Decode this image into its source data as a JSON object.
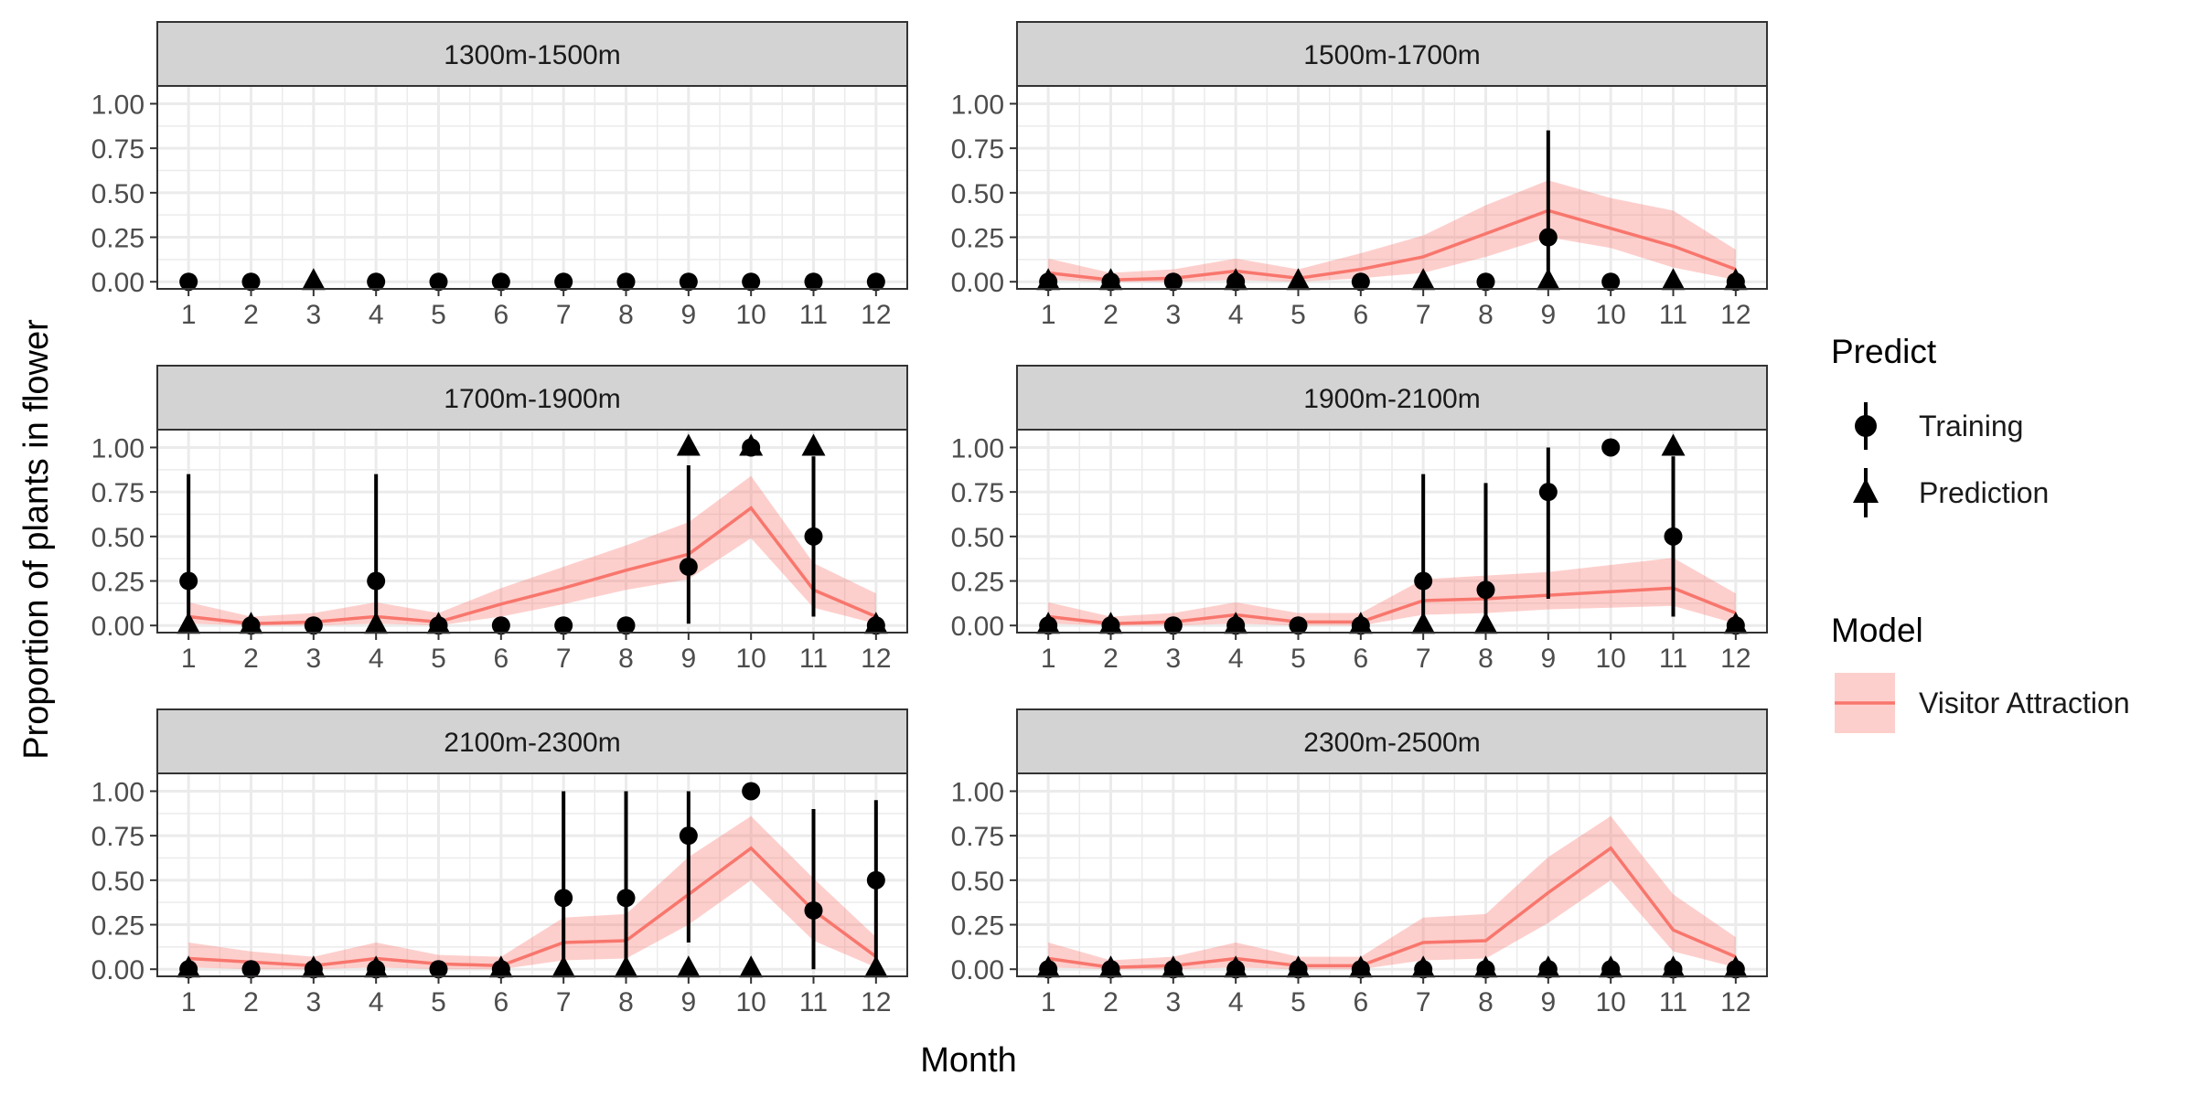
{
  "figure": {
    "ylabel": "Proportion of plants in flower",
    "xlabel": "Month",
    "legend_predict_title": "Predict",
    "legend_training_label": "Training",
    "legend_prediction_label": "Prediction",
    "legend_model_title": "Model",
    "legend_model_label": "Visitor Attraction"
  },
  "chart_data": {
    "type": "line",
    "layout": "facet-grid-3x2",
    "xlabel": "Month",
    "ylabel": "Proportion of plants in flower",
    "x_ticks": [
      1,
      2,
      3,
      4,
      5,
      6,
      7,
      8,
      9,
      10,
      11,
      12
    ],
    "y_ticks": [
      0,
      0.25,
      0.5,
      0.75,
      1
    ],
    "y_tick_labels": [
      "0.00",
      "0.25",
      "0.50",
      "0.75",
      "1.00"
    ],
    "xlim": [
      0.5,
      12.5
    ],
    "ylim": [
      -0.04,
      1.1
    ],
    "grid": true,
    "legend_placement": "right",
    "colors": {
      "model_line": "#f8766d",
      "model_ribbon": "#f8766d",
      "points": "#000000",
      "strip": "#d3d3d3",
      "grid": "#ebebeb"
    },
    "legend": {
      "predict": {
        "title": "Predict",
        "entries": [
          "Training",
          "Prediction"
        ]
      },
      "model": {
        "title": "Model",
        "entries": [
          "Visitor Attraction"
        ]
      }
    },
    "panels": [
      {
        "label": "1300m-1500m",
        "model": null,
        "training": [
          {
            "x": 1,
            "y": 0
          },
          {
            "x": 2,
            "y": 0
          },
          {
            "x": 4,
            "y": 0
          },
          {
            "x": 5,
            "y": 0
          },
          {
            "x": 6,
            "y": 0
          },
          {
            "x": 7,
            "y": 0
          },
          {
            "x": 8,
            "y": 0
          },
          {
            "x": 9,
            "y": 0
          },
          {
            "x": 10,
            "y": 0
          },
          {
            "x": 11,
            "y": 0
          },
          {
            "x": 12,
            "y": 0
          }
        ],
        "prediction": [
          {
            "x": 3,
            "y": 0
          }
        ]
      },
      {
        "label": "1500m-1700m",
        "model": {
          "mean": [
            0.05,
            0.01,
            0.02,
            0.06,
            0.02,
            0.07,
            0.14,
            0.27,
            0.4,
            0.3,
            0.2,
            0.07
          ],
          "lower": [
            0.01,
            0.0,
            0.0,
            0.01,
            0.0,
            0.02,
            0.05,
            0.14,
            0.25,
            0.19,
            0.08,
            0.01
          ],
          "upper": [
            0.13,
            0.05,
            0.07,
            0.13,
            0.07,
            0.16,
            0.26,
            0.43,
            0.57,
            0.47,
            0.4,
            0.18
          ]
        },
        "training": [
          {
            "x": 1,
            "y": 0
          },
          {
            "x": 2,
            "y": 0
          },
          {
            "x": 3,
            "y": 0
          },
          {
            "x": 4,
            "y": 0
          },
          {
            "x": 6,
            "y": 0
          },
          {
            "x": 8,
            "y": 0
          },
          {
            "x": 9,
            "y": 0.25,
            "lo": 0.0,
            "hi": 0.85
          },
          {
            "x": 10,
            "y": 0
          },
          {
            "x": 12,
            "y": 0
          }
        ],
        "prediction": [
          {
            "x": 1,
            "y": 0
          },
          {
            "x": 2,
            "y": 0
          },
          {
            "x": 4,
            "y": 0
          },
          {
            "x": 5,
            "y": 0
          },
          {
            "x": 7,
            "y": 0
          },
          {
            "x": 9,
            "y": 0
          },
          {
            "x": 11,
            "y": 0
          },
          {
            "x": 12,
            "y": 0
          }
        ]
      },
      {
        "label": "1700m-1900m",
        "model": {
          "mean": [
            0.05,
            0.01,
            0.02,
            0.05,
            0.02,
            0.12,
            0.21,
            0.31,
            0.4,
            0.66,
            0.2,
            0.05
          ],
          "lower": [
            0.01,
            0.0,
            0.0,
            0.01,
            0.0,
            0.05,
            0.12,
            0.2,
            0.26,
            0.49,
            0.1,
            0.01
          ],
          "upper": [
            0.13,
            0.05,
            0.07,
            0.13,
            0.07,
            0.21,
            0.33,
            0.45,
            0.58,
            0.84,
            0.35,
            0.18
          ]
        },
        "training": [
          {
            "x": 1,
            "y": 0.25,
            "lo": 0.0,
            "hi": 0.85
          },
          {
            "x": 2,
            "y": 0
          },
          {
            "x": 3,
            "y": 0
          },
          {
            "x": 4,
            "y": 0.25,
            "lo": 0.0,
            "hi": 0.85
          },
          {
            "x": 5,
            "y": 0
          },
          {
            "x": 6,
            "y": 0
          },
          {
            "x": 7,
            "y": 0
          },
          {
            "x": 8,
            "y": 0
          },
          {
            "x": 9,
            "y": 0.33,
            "lo": 0.01,
            "hi": 0.9
          },
          {
            "x": 10,
            "y": 1.0
          },
          {
            "x": 11,
            "y": 0.5,
            "lo": 0.05,
            "hi": 0.95
          },
          {
            "x": 12,
            "y": 0
          }
        ],
        "prediction": [
          {
            "x": 1,
            "y": 0
          },
          {
            "x": 2,
            "y": 0
          },
          {
            "x": 4,
            "y": 0
          },
          {
            "x": 5,
            "y": 0
          },
          {
            "x": 9,
            "y": 1.0
          },
          {
            "x": 10,
            "y": 1.0
          },
          {
            "x": 11,
            "y": 1.0
          },
          {
            "x": 12,
            "y": 0
          }
        ]
      },
      {
        "label": "1900m-2100m",
        "model": {
          "mean": [
            0.05,
            0.01,
            0.02,
            0.06,
            0.02,
            0.02,
            0.14,
            0.15,
            0.17,
            0.19,
            0.21,
            0.07
          ],
          "lower": [
            0.01,
            0.0,
            0.0,
            0.01,
            0.0,
            0.0,
            0.06,
            0.07,
            0.09,
            0.1,
            0.11,
            0.01
          ],
          "upper": [
            0.13,
            0.05,
            0.07,
            0.13,
            0.07,
            0.07,
            0.26,
            0.28,
            0.3,
            0.34,
            0.38,
            0.18
          ]
        },
        "training": [
          {
            "x": 1,
            "y": 0
          },
          {
            "x": 2,
            "y": 0
          },
          {
            "x": 3,
            "y": 0
          },
          {
            "x": 4,
            "y": 0
          },
          {
            "x": 5,
            "y": 0
          },
          {
            "x": 6,
            "y": 0
          },
          {
            "x": 7,
            "y": 0.25,
            "lo": 0.0,
            "hi": 0.85
          },
          {
            "x": 8,
            "y": 0.2,
            "lo": 0.0,
            "hi": 0.8
          },
          {
            "x": 9,
            "y": 0.75,
            "lo": 0.15,
            "hi": 1.0
          },
          {
            "x": 10,
            "y": 1.0
          },
          {
            "x": 11,
            "y": 0.5,
            "lo": 0.05,
            "hi": 0.95
          },
          {
            "x": 12,
            "y": 0
          }
        ],
        "prediction": [
          {
            "x": 1,
            "y": 0
          },
          {
            "x": 2,
            "y": 0
          },
          {
            "x": 4,
            "y": 0
          },
          {
            "x": 6,
            "y": 0
          },
          {
            "x": 7,
            "y": 0
          },
          {
            "x": 8,
            "y": 0
          },
          {
            "x": 11,
            "y": 1.0
          },
          {
            "x": 12,
            "y": 0
          }
        ]
      },
      {
        "label": "2100m-2300m",
        "model": {
          "mean": [
            0.06,
            0.04,
            0.02,
            0.06,
            0.03,
            0.02,
            0.15,
            0.16,
            0.42,
            0.68,
            0.33,
            0.07
          ],
          "lower": [
            0.01,
            0.0,
            0.0,
            0.01,
            0.0,
            0.0,
            0.05,
            0.06,
            0.25,
            0.5,
            0.16,
            0.01
          ],
          "upper": [
            0.15,
            0.1,
            0.07,
            0.15,
            0.08,
            0.07,
            0.29,
            0.31,
            0.63,
            0.86,
            0.51,
            0.18
          ]
        },
        "training": [
          {
            "x": 1,
            "y": 0
          },
          {
            "x": 2,
            "y": 0
          },
          {
            "x": 3,
            "y": 0
          },
          {
            "x": 4,
            "y": 0
          },
          {
            "x": 5,
            "y": 0
          },
          {
            "x": 6,
            "y": 0
          },
          {
            "x": 7,
            "y": 0.4,
            "lo": 0.0,
            "hi": 1.0
          },
          {
            "x": 8,
            "y": 0.4,
            "lo": 0.0,
            "hi": 1.0
          },
          {
            "x": 9,
            "y": 0.75,
            "lo": 0.15,
            "hi": 1.0
          },
          {
            "x": 10,
            "y": 1.0
          },
          {
            "x": 11,
            "y": 0.33,
            "lo": 0.0,
            "hi": 0.9
          },
          {
            "x": 12,
            "y": 0.5,
            "lo": 0.0,
            "hi": 0.95
          }
        ],
        "prediction": [
          {
            "x": 1,
            "y": 0
          },
          {
            "x": 3,
            "y": 0
          },
          {
            "x": 4,
            "y": 0
          },
          {
            "x": 6,
            "y": 0
          },
          {
            "x": 7,
            "y": 0
          },
          {
            "x": 8,
            "y": 0
          },
          {
            "x": 9,
            "y": 0
          },
          {
            "x": 10,
            "y": 0
          },
          {
            "x": 12,
            "y": 0
          }
        ]
      },
      {
        "label": "2300m-2500m",
        "model": {
          "mean": [
            0.06,
            0.01,
            0.02,
            0.06,
            0.02,
            0.02,
            0.15,
            0.16,
            0.43,
            0.68,
            0.22,
            0.07
          ],
          "lower": [
            0.01,
            0.0,
            0.0,
            0.01,
            0.0,
            0.0,
            0.05,
            0.06,
            0.26,
            0.5,
            0.1,
            0.01
          ],
          "upper": [
            0.15,
            0.05,
            0.07,
            0.15,
            0.07,
            0.07,
            0.29,
            0.31,
            0.63,
            0.86,
            0.42,
            0.18
          ]
        },
        "training": [
          {
            "x": 1,
            "y": 0
          },
          {
            "x": 2,
            "y": 0
          },
          {
            "x": 3,
            "y": 0
          },
          {
            "x": 4,
            "y": 0
          },
          {
            "x": 5,
            "y": 0
          },
          {
            "x": 6,
            "y": 0
          },
          {
            "x": 7,
            "y": 0
          },
          {
            "x": 8,
            "y": 0
          },
          {
            "x": 9,
            "y": 0
          },
          {
            "x": 10,
            "y": 0
          },
          {
            "x": 11,
            "y": 0
          },
          {
            "x": 12,
            "y": 0
          }
        ],
        "prediction": [
          {
            "x": 1,
            "y": 0
          },
          {
            "x": 2,
            "y": 0
          },
          {
            "x": 3,
            "y": 0
          },
          {
            "x": 4,
            "y": 0
          },
          {
            "x": 5,
            "y": 0
          },
          {
            "x": 6,
            "y": 0
          },
          {
            "x": 7,
            "y": 0
          },
          {
            "x": 8,
            "y": 0
          },
          {
            "x": 9,
            "y": 0
          },
          {
            "x": 10,
            "y": 0
          },
          {
            "x": 11,
            "y": 0
          },
          {
            "x": 12,
            "y": 0
          }
        ]
      }
    ]
  }
}
